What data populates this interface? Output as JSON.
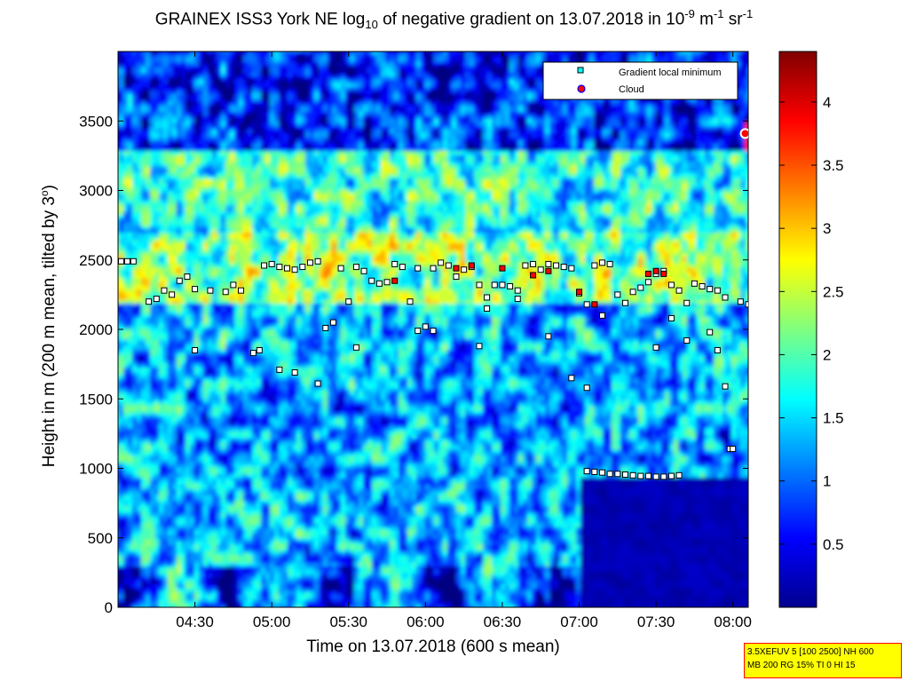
{
  "header": {
    "title_main": "GRAINEX ISS3 York NE log",
    "title_sub": "10",
    "title_mid": " of negative gradient on 13.07.2018 in 10",
    "title_exp1": "-9",
    "title_unit1": " m",
    "title_exp2": "-1",
    "title_unit2": " sr",
    "title_exp3": "-1"
  },
  "axes": {
    "xlabel": "Time on 13.07.2018 (600 s mean)",
    "ylabel_main": "Height in m (200 m mean, tilted by 3",
    "ylabel_sup": "o",
    "ylabel_end": ")"
  },
  "legend": {
    "items": [
      {
        "label": "Gradient local minimum",
        "color": "#00ffff"
      },
      {
        "label": "Cloud",
        "color": "#ff0000"
      }
    ]
  },
  "info_box": {
    "line1": "3.5XEFUV 5 [100 2500] NH 600",
    "line2": "MB 200 RG 15% TI 0 HI 15"
  },
  "colors": {
    "background_low": "#00008f",
    "mid": "#00ffff",
    "high": "#ffff00",
    "top": "#800000"
  },
  "chart_data": {
    "type": "heatmap",
    "x_ticks": [
      "04:30",
      "05:00",
      "05:30",
      "06:00",
      "06:30",
      "07:00",
      "07:30",
      "08:00"
    ],
    "y_ticks": [
      "0",
      "500",
      "1000",
      "1500",
      "2000",
      "2500",
      "3000",
      "3500"
    ],
    "colorbar_ticks": [
      "0.5",
      "1",
      "1.5",
      "2",
      "2.5",
      "3",
      "3.5",
      "4"
    ],
    "xlim_hours": [
      4.0,
      8.1
    ],
    "ylim": [
      0,
      4000
    ],
    "clim": [
      0,
      4.4
    ],
    "colormap": "jet",
    "series": [
      {
        "name": "Gradient local minimum",
        "points": [
          [
            4.02,
            2490
          ],
          [
            4.06,
            2490
          ],
          [
            4.1,
            2490
          ],
          [
            4.2,
            2200
          ],
          [
            4.25,
            2220
          ],
          [
            4.3,
            2280
          ],
          [
            4.35,
            2250
          ],
          [
            4.4,
            2350
          ],
          [
            4.45,
            2380
          ],
          [
            4.5,
            2290
          ],
          [
            4.6,
            2280
          ],
          [
            4.7,
            2270
          ],
          [
            4.75,
            2320
          ],
          [
            4.8,
            2280
          ],
          [
            4.88,
            1830
          ],
          [
            4.92,
            1850
          ],
          [
            4.95,
            2460
          ],
          [
            5.0,
            2470
          ],
          [
            5.05,
            2450
          ],
          [
            5.1,
            2440
          ],
          [
            5.15,
            2430
          ],
          [
            5.2,
            2450
          ],
          [
            5.25,
            2480
          ],
          [
            5.3,
            2490
          ],
          [
            5.35,
            2010
          ],
          [
            5.4,
            2050
          ],
          [
            5.45,
            2440
          ],
          [
            5.5,
            2200
          ],
          [
            5.55,
            2450
          ],
          [
            5.6,
            2420
          ],
          [
            5.65,
            2350
          ],
          [
            5.7,
            2330
          ],
          [
            5.75,
            2340
          ],
          [
            5.8,
            2470
          ],
          [
            5.85,
            2450
          ],
          [
            5.9,
            2200
          ],
          [
            5.95,
            2440
          ],
          [
            6.0,
            2020
          ],
          [
            6.05,
            2440
          ],
          [
            6.1,
            2480
          ],
          [
            6.15,
            2460
          ],
          [
            6.2,
            2380
          ],
          [
            6.25,
            2430
          ],
          [
            6.3,
            2450
          ],
          [
            6.35,
            2320
          ],
          [
            6.4,
            2230
          ],
          [
            6.45,
            2320
          ],
          [
            6.5,
            2320
          ],
          [
            6.55,
            2310
          ],
          [
            6.6,
            2280
          ],
          [
            6.65,
            2460
          ],
          [
            6.7,
            2470
          ],
          [
            6.75,
            2430
          ],
          [
            6.8,
            2470
          ],
          [
            6.85,
            2460
          ],
          [
            6.9,
            2450
          ],
          [
            6.95,
            2440
          ],
          [
            7.0,
            2260
          ],
          [
            7.05,
            2180
          ],
          [
            7.1,
            2460
          ],
          [
            7.15,
            2480
          ],
          [
            7.2,
            2470
          ],
          [
            7.25,
            2250
          ],
          [
            7.3,
            2190
          ],
          [
            7.35,
            2270
          ],
          [
            7.4,
            2300
          ],
          [
            7.45,
            2340
          ],
          [
            7.5,
            2400
          ],
          [
            7.55,
            2420
          ],
          [
            7.6,
            2320
          ],
          [
            7.65,
            2280
          ],
          [
            7.7,
            2190
          ],
          [
            7.75,
            2330
          ],
          [
            7.8,
            2310
          ],
          [
            7.85,
            2290
          ],
          [
            7.9,
            2280
          ],
          [
            7.95,
            2230
          ],
          [
            8.05,
            2200
          ],
          [
            8.1,
            2180
          ],
          [
            7.05,
            980
          ],
          [
            7.1,
            975
          ],
          [
            7.15,
            970
          ],
          [
            7.2,
            960
          ],
          [
            7.25,
            960
          ],
          [
            7.3,
            955
          ],
          [
            7.35,
            950
          ],
          [
            7.4,
            945
          ],
          [
            7.45,
            945
          ],
          [
            7.5,
            940
          ],
          [
            7.55,
            940
          ],
          [
            7.6,
            945
          ],
          [
            7.65,
            950
          ],
          [
            4.5,
            1850
          ],
          [
            5.05,
            1710
          ],
          [
            5.15,
            1690
          ],
          [
            5.3,
            1610
          ],
          [
            5.55,
            1870
          ],
          [
            5.95,
            1990
          ],
          [
            6.05,
            1990
          ],
          [
            6.35,
            1880
          ],
          [
            6.4,
            2150
          ],
          [
            6.6,
            2220
          ],
          [
            6.8,
            1950
          ],
          [
            6.95,
            1650
          ],
          [
            7.05,
            1580
          ],
          [
            7.15,
            2100
          ],
          [
            7.5,
            1870
          ],
          [
            7.6,
            2080
          ],
          [
            7.7,
            1920
          ],
          [
            7.85,
            1980
          ],
          [
            7.9,
            1850
          ],
          [
            7.95,
            1590
          ],
          [
            7.98,
            1140
          ],
          [
            8.0,
            1140
          ]
        ]
      },
      {
        "name": "Cloud",
        "points": [
          [
            5.8,
            2350
          ],
          [
            6.2,
            2440
          ],
          [
            6.3,
            2460
          ],
          [
            6.5,
            2440
          ],
          [
            6.7,
            2390
          ],
          [
            6.8,
            2420
          ],
          [
            7.0,
            2270
          ],
          [
            7.1,
            2180
          ],
          [
            7.45,
            2400
          ],
          [
            7.5,
            2420
          ],
          [
            7.55,
            2400
          ],
          [
            8.08,
            3410
          ]
        ]
      }
    ]
  }
}
